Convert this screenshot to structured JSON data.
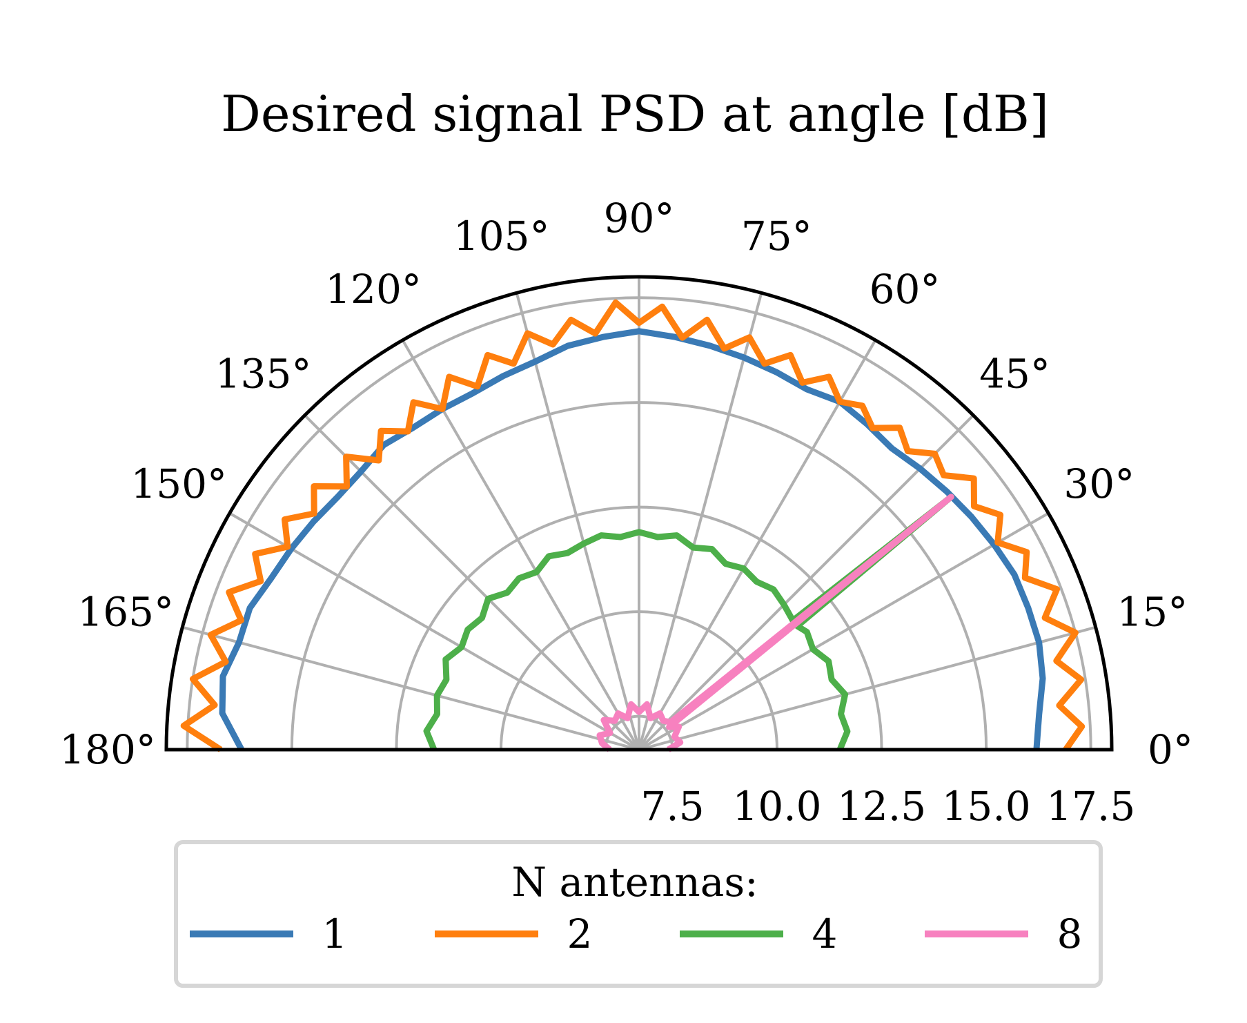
{
  "chart_data": {
    "type": "polar-line",
    "title": "Desired signal PSD at angle [dB]",
    "theta_range_deg": [
      0,
      180
    ],
    "theta_ticks_deg": [
      0,
      15,
      30,
      45,
      60,
      75,
      90,
      105,
      120,
      135,
      150,
      165,
      180
    ],
    "theta_tick_labels": [
      "0°",
      "15°",
      "30°",
      "45°",
      "60°",
      "75°",
      "90°",
      "105°",
      "120°",
      "135°",
      "150°",
      "165°",
      "180°"
    ],
    "r_range": [
      6.7,
      18.0
    ],
    "r_ticks": [
      7.5,
      10.0,
      12.5,
      15.0,
      17.5
    ],
    "r_tick_labels": [
      "7.5",
      "10.0",
      "12.5",
      "15.0",
      "17.5"
    ],
    "grid": true,
    "legend": {
      "title": "N antennas:",
      "position": "bottom",
      "columns": 4
    },
    "series": [
      {
        "name": "1",
        "color": "#3a7ab5",
        "points": [
          [
            0,
            16.2
          ],
          [
            5,
            16.3
          ],
          [
            10,
            16.5
          ],
          [
            15,
            16.6
          ],
          [
            20,
            16.6
          ],
          [
            25,
            16.6
          ],
          [
            30,
            16.5
          ],
          [
            35,
            16.4
          ],
          [
            40,
            16.3
          ],
          [
            45,
            16.2
          ],
          [
            50,
            16.1
          ],
          [
            55,
            16.2
          ],
          [
            60,
            16.3
          ],
          [
            65,
            16.2
          ],
          [
            70,
            16.3
          ],
          [
            75,
            16.4
          ],
          [
            80,
            16.5
          ],
          [
            85,
            16.6
          ],
          [
            90,
            16.7
          ],
          [
            95,
            16.6
          ],
          [
            100,
            16.5
          ],
          [
            105,
            16.3
          ],
          [
            110,
            16.2
          ],
          [
            115,
            16.1
          ],
          [
            120,
            16.1
          ],
          [
            125,
            16.1
          ],
          [
            130,
            16.2
          ],
          [
            135,
            16.1
          ],
          [
            140,
            16.1
          ],
          [
            145,
            16.2
          ],
          [
            150,
            16.3
          ],
          [
            155,
            16.4
          ],
          [
            160,
            16.6
          ],
          [
            165,
            16.6
          ],
          [
            170,
            16.8
          ],
          [
            175,
            16.7
          ],
          [
            180,
            16.2
          ]
        ]
      },
      {
        "name": "2",
        "color": "#ff7f0e",
        "points": [
          [
            0,
            16.9
          ],
          [
            3,
            17.3
          ],
          [
            6,
            16.8
          ],
          [
            9,
            17.4
          ],
          [
            12,
            16.9
          ],
          [
            15,
            17.5
          ],
          [
            18,
            16.9
          ],
          [
            21,
            17.4
          ],
          [
            24,
            16.8
          ],
          [
            27,
            17.1
          ],
          [
            30,
            16.6
          ],
          [
            33,
            17.0
          ],
          [
            36,
            16.6
          ],
          [
            39,
            17.0
          ],
          [
            42,
            16.5
          ],
          [
            45,
            16.7
          ],
          [
            48,
            16.3
          ],
          [
            51,
            16.6
          ],
          [
            54,
            16.2
          ],
          [
            57,
            16.5
          ],
          [
            60,
            16.3
          ],
          [
            63,
            16.7
          ],
          [
            66,
            16.3
          ],
          [
            69,
            16.8
          ],
          [
            72,
            16.4
          ],
          [
            75,
            16.9
          ],
          [
            78,
            16.5
          ],
          [
            81,
            17.1
          ],
          [
            84,
            16.6
          ],
          [
            87,
            17.3
          ],
          [
            90,
            16.9
          ],
          [
            93,
            17.4
          ],
          [
            96,
            16.7
          ],
          [
            99,
            17.1
          ],
          [
            102,
            16.6
          ],
          [
            105,
            17.0
          ],
          [
            108,
            16.4
          ],
          [
            111,
            16.8
          ],
          [
            114,
            16.2
          ],
          [
            117,
            16.7
          ],
          [
            120,
            16.1
          ],
          [
            123,
            16.6
          ],
          [
            126,
            16.1
          ],
          [
            129,
            16.5
          ],
          [
            132,
            16.0
          ],
          [
            135,
            16.6
          ],
          [
            138,
            16.1
          ],
          [
            141,
            16.7
          ],
          [
            144,
            16.3
          ],
          [
            147,
            16.8
          ],
          [
            150,
            16.4
          ],
          [
            153,
            17.0
          ],
          [
            156,
            16.6
          ],
          [
            159,
            17.2
          ],
          [
            162,
            16.7
          ],
          [
            165,
            17.3
          ],
          [
            168,
            16.8
          ],
          [
            171,
            17.5
          ],
          [
            174,
            16.9
          ],
          [
            177,
            17.6
          ],
          [
            180,
            16.7
          ]
        ]
      },
      {
        "name": "4",
        "color": "#4daf4a",
        "points": [
          [
            0,
            11.5
          ],
          [
            5,
            11.7
          ],
          [
            10,
            11.6
          ],
          [
            15,
            11.8
          ],
          [
            20,
            11.6
          ],
          [
            25,
            11.7
          ],
          [
            30,
            11.5
          ],
          [
            35,
            11.6
          ],
          [
            38,
            11.5
          ],
          [
            39,
            16.3
          ],
          [
            40,
            11.5
          ],
          [
            45,
            11.6
          ],
          [
            50,
            11.7
          ],
          [
            55,
            11.6
          ],
          [
            60,
            11.7
          ],
          [
            65,
            11.6
          ],
          [
            70,
            11.8
          ],
          [
            75,
            11.7
          ],
          [
            80,
            11.9
          ],
          [
            85,
            11.8
          ],
          [
            90,
            11.9
          ],
          [
            95,
            11.8
          ],
          [
            100,
            11.9
          ],
          [
            105,
            11.8
          ],
          [
            110,
            11.7
          ],
          [
            115,
            11.8
          ],
          [
            120,
            11.6
          ],
          [
            125,
            11.7
          ],
          [
            130,
            11.6
          ],
          [
            135,
            11.8
          ],
          [
            140,
            11.6
          ],
          [
            145,
            11.7
          ],
          [
            150,
            11.6
          ],
          [
            155,
            11.8
          ],
          [
            160,
            11.6
          ],
          [
            165,
            11.7
          ],
          [
            170,
            11.6
          ],
          [
            175,
            11.8
          ],
          [
            180,
            11.6
          ]
        ]
      },
      {
        "name": "8",
        "color": "#f781bf",
        "points": [
          [
            0,
            7.4
          ],
          [
            10,
            7.7
          ],
          [
            20,
            7.6
          ],
          [
            30,
            7.8
          ],
          [
            37,
            7.6
          ],
          [
            39,
            16.3
          ],
          [
            41,
            7.7
          ],
          [
            50,
            7.6
          ],
          [
            60,
            7.7
          ],
          [
            70,
            7.5
          ],
          [
            80,
            7.8
          ],
          [
            90,
            7.6
          ],
          [
            100,
            7.8
          ],
          [
            110,
            7.5
          ],
          [
            120,
            7.7
          ],
          [
            130,
            7.6
          ],
          [
            140,
            7.8
          ],
          [
            150,
            7.5
          ],
          [
            160,
            7.7
          ],
          [
            170,
            7.6
          ],
          [
            180,
            7.4
          ]
        ]
      }
    ]
  }
}
